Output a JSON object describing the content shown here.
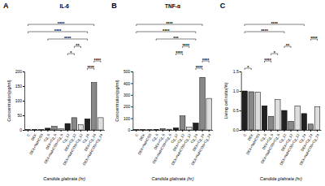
{
  "chart_data": [
    {
      "type": "bar",
      "panel_label": "A",
      "title": "IL-6",
      "y_label": "Concentration(pg/ml)",
      "x_label": "Candida glabrata (hr)",
      "categories": [
        "C",
        "DEX",
        "DEX+NaHCO3",
        "Cg_6",
        "DEX+Cg_6",
        "DEX+NaHCO3+Cg_6",
        "Cg_12",
        "DEX+Cg_12",
        "DEX+NaHCO3+Cg_12",
        "Cg_24",
        "DEX+Cg_24",
        "DEX+NaHCO3+Cg_24"
      ],
      "values": [
        1,
        2,
        1,
        6,
        12,
        4,
        22,
        42,
        18,
        38,
        162,
        42
      ],
      "colors": [
        "#222222",
        "#888888",
        "#dddddd",
        "#222222",
        "#888888",
        "#dddddd",
        "#222222",
        "#888888",
        "#dddddd",
        "#222222",
        "#888888",
        "#dddddd"
      ],
      "ylim": [
        0,
        200
      ],
      "yticks": [
        0,
        50,
        100,
        150,
        200
      ],
      "comparisons": [
        {
          "groups": [
            "Cg_24",
            "DEX+Cg_24"
          ],
          "text": "****"
        },
        {
          "groups": [
            "DEX+Cg_24",
            "DEX+NaHCO3+Cg_24"
          ],
          "text": "****"
        },
        {
          "groups": [
            "Cg_12",
            "DEX+Cg_12"
          ],
          "text": "*"
        },
        {
          "groups": [
            "DEX+Cg_12",
            "DEX+NaHCO3+Cg_12"
          ],
          "text": "**"
        },
        {
          "groups": [
            "Cg_6",
            "Cg_24"
          ],
          "text": "****"
        },
        {
          "groups": [
            "C",
            "Cg_24"
          ],
          "text": "****"
        },
        {
          "groups": [
            "C",
            "DEX+Cg_24"
          ],
          "text": "****"
        }
      ]
    },
    {
      "type": "bar",
      "panel_label": "B",
      "title": "TNF-α",
      "y_label": "Concentration(pg/ml)",
      "x_label": "Candida glabrata (hr)",
      "categories": [
        "C",
        "DEX",
        "DEX+NaHCO3",
        "Cg_6",
        "DEX+Cg_6",
        "DEX+NaHCO3+Cg_6",
        "Cg_12",
        "DEX+Cg_12",
        "DEX+NaHCO3+Cg_12",
        "Cg_24",
        "DEX+Cg_24",
        "DEX+NaHCO3+Cg_24"
      ],
      "values": [
        2,
        3,
        2,
        5,
        12,
        6,
        18,
        120,
        25,
        60,
        450,
        270
      ],
      "colors": [
        "#222222",
        "#888888",
        "#dddddd",
        "#222222",
        "#888888",
        "#dddddd",
        "#222222",
        "#888888",
        "#dddddd",
        "#222222",
        "#888888",
        "#dddddd"
      ],
      "ylim": [
        0,
        500
      ],
      "yticks": [
        0,
        100,
        200,
        300,
        400,
        500
      ],
      "comparisons": [
        {
          "groups": [
            "Cg_24",
            "DEX+Cg_24"
          ],
          "text": "****"
        },
        {
          "groups": [
            "DEX+Cg_24",
            "DEX+NaHCO3+Cg_24"
          ],
          "text": "****"
        },
        {
          "groups": [
            "Cg_12",
            "DEX+Cg_12"
          ],
          "text": "****"
        },
        {
          "groups": [
            "DEX+Cg_12",
            "DEX+NaHCO3+Cg_12"
          ],
          "text": "****"
        },
        {
          "groups": [
            "Cg_6",
            "Cg_24"
          ],
          "text": "***"
        },
        {
          "groups": [
            "C",
            "Cg_24"
          ],
          "text": "****"
        },
        {
          "groups": [
            "C",
            "DEX+Cg_24"
          ],
          "text": "****"
        }
      ]
    },
    {
      "type": "bar",
      "panel_label": "C",
      "title": "",
      "y_label": "Living cell ratio(%)",
      "x_label": "Candida glabrata (hr)",
      "categories": [
        "C",
        "DEX",
        "DEX+NaHCO3",
        "Cg_6",
        "DEX+Cg_6",
        "DEX+NaHCO3+Cg_6",
        "Cg_12",
        "DEX+Cg_12",
        "DEX+NaHCO3+Cg_12",
        "Cg_24",
        "DEX+Cg_24",
        "DEX+NaHCO3+Cg_24"
      ],
      "values": [
        1.0,
        0.98,
        0.97,
        0.62,
        0.35,
        0.78,
        0.5,
        0.22,
        0.62,
        0.42,
        0.15,
        0.6
      ],
      "colors": [
        "#222222",
        "#888888",
        "#dddddd",
        "#222222",
        "#888888",
        "#dddddd",
        "#222222",
        "#888888",
        "#dddddd",
        "#222222",
        "#888888",
        "#dddddd"
      ],
      "ylim": [
        0,
        1.5
      ],
      "yticks": [
        {
          "value": 0,
          "label": "0.0"
        },
        {
          "value": 0.5,
          "label": "0.5"
        },
        {
          "value": 1,
          "label": "1.0"
        },
        {
          "value": 1.5,
          "label": "1.5"
        }
      ],
      "comparisons": [
        {
          "groups": [
            "C",
            "DEX"
          ],
          "text": "*"
        },
        {
          "groups": [
            "Cg_6",
            "DEX+Cg_6"
          ],
          "text": "****"
        },
        {
          "groups": [
            "DEX+Cg_6",
            "DEX+NaHCO3+Cg_6"
          ],
          "text": "*"
        },
        {
          "groups": [
            "Cg_12",
            "DEX+Cg_12"
          ],
          "text": "**"
        },
        {
          "groups": [
            "DEX+Cg_24",
            "DEX+NaHCO3+Cg_24"
          ],
          "text": "****"
        },
        {
          "groups": [
            "C",
            "Cg_12"
          ],
          "text": "****"
        },
        {
          "groups": [
            "C",
            "Cg_24"
          ],
          "text": "****"
        }
      ]
    }
  ]
}
